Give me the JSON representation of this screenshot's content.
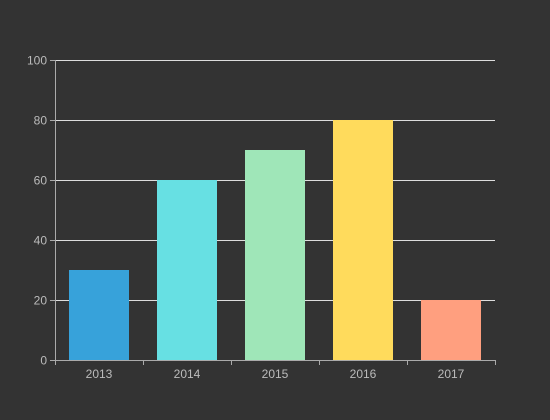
{
  "colors": {
    "background": "#333333",
    "tick_label": "#bbbbbb",
    "grid": "#dddddd",
    "axis": "#aaaaaa"
  },
  "chart_data": {
    "type": "bar",
    "title": "",
    "xlabel": "",
    "ylabel": "",
    "categories": [
      "2013",
      "2014",
      "2015",
      "2016",
      "2017"
    ],
    "values": [
      30,
      60,
      70,
      80,
      20
    ],
    "bar_colors": [
      "#37a2da",
      "#67e0e3",
      "#9fe6b8",
      "#ffdb5c",
      "#ff9f7f"
    ],
    "ylim": [
      0,
      100
    ],
    "yticks": [
      0,
      20,
      40,
      60,
      80,
      100
    ],
    "ytick_labels": [
      "0",
      "20",
      "40",
      "60",
      "80",
      "100"
    ],
    "grid": true,
    "legend": "none"
  }
}
